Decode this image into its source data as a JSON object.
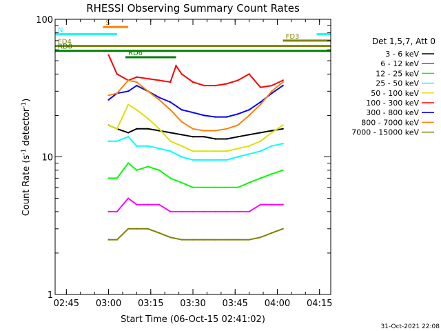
{
  "chart_data": {
    "type": "line",
    "title": "RHESSI Observing Summary Count Rates",
    "xlabel": "Start Time (06-Oct-15 02:41:02)",
    "ylabel": "Count Rate (s⁻¹ detector⁻¹)",
    "ylabel_main": "Count Rate (s",
    "ylabel_mid": " detector",
    "ylabel_end": ")",
    "ylabel_sup": "-1",
    "y_scale": "log",
    "ylim": [
      1,
      100
    ],
    "xlim": [
      "02:41",
      "04:19"
    ],
    "x_ticks": [
      "02:45",
      "03:00",
      "03:15",
      "03:30",
      "03:45",
      "04:00",
      "04:15"
    ],
    "y_ticks": [
      "1",
      "10",
      "100"
    ],
    "legend_title": "Det 1,5,7, Att 0",
    "legend_position": "right",
    "timestamp": "31-Oct-2021 22:08",
    "series": [
      {
        "name": "3 - 6 keV",
        "color": "#000000",
        "x": [
          "03:00",
          "03:03",
          "03:07",
          "03:10",
          "03:14",
          "03:18",
          "03:22",
          "03:26",
          "03:30",
          "03:34",
          "03:38",
          "03:42",
          "03:46",
          "03:50",
          "03:54",
          "03:58",
          "04:02"
        ],
        "y": [
          17,
          16,
          15,
          16,
          16,
          15.5,
          15,
          14.5,
          14,
          14,
          13.5,
          13.5,
          14,
          14.5,
          15,
          15.5,
          16
        ]
      },
      {
        "name": "6 - 12 keV",
        "color": "#ff00ff",
        "x": [
          "03:00",
          "03:03",
          "03:07",
          "03:10",
          "03:14",
          "03:18",
          "03:22",
          "03:26",
          "03:30",
          "03:34",
          "03:38",
          "03:42",
          "03:46",
          "03:50",
          "03:54",
          "03:58",
          "04:02"
        ],
        "y": [
          4,
          4,
          5,
          4.5,
          4.5,
          4.5,
          4,
          4,
          4,
          4,
          4,
          4,
          4,
          4,
          4.5,
          4.5,
          4.5
        ]
      },
      {
        "name": "12 - 25 keV",
        "color": "#00ff00",
        "x": [
          "03:00",
          "03:03",
          "03:07",
          "03:10",
          "03:14",
          "03:18",
          "03:22",
          "03:26",
          "03:30",
          "03:34",
          "03:38",
          "03:42",
          "03:46",
          "03:50",
          "03:54",
          "03:58",
          "04:02"
        ],
        "y": [
          7,
          7,
          9,
          8,
          8.5,
          8,
          7,
          6.5,
          6,
          6,
          6,
          6,
          6,
          6.5,
          7,
          7.5,
          8
        ]
      },
      {
        "name": "25 - 50 keV",
        "color": "#00ffff",
        "x": [
          "03:00",
          "03:03",
          "03:07",
          "03:10",
          "03:14",
          "03:18",
          "03:22",
          "03:26",
          "03:30",
          "03:34",
          "03:38",
          "03:42",
          "03:46",
          "03:50",
          "03:54",
          "03:58",
          "04:02"
        ],
        "y": [
          13,
          13,
          14,
          12,
          12,
          11.5,
          11,
          10,
          9.5,
          9.5,
          9.5,
          9.5,
          10,
          10.5,
          11,
          12,
          12.5
        ]
      },
      {
        "name": "50 - 100 keV",
        "color": "#e0e000",
        "x": [
          "03:00",
          "03:03",
          "03:07",
          "03:10",
          "03:14",
          "03:18",
          "03:22",
          "03:26",
          "03:30",
          "03:34",
          "03:38",
          "03:42",
          "03:46",
          "03:50",
          "03:54",
          "03:58",
          "04:02"
        ],
        "y": [
          17,
          16,
          24,
          22,
          19,
          16,
          13,
          12,
          11,
          11,
          11,
          11,
          11.5,
          12,
          13,
          15,
          17
        ]
      },
      {
        "name": "100 - 300 keV",
        "color": "#ff0000",
        "x": [
          "03:00",
          "03:03",
          "03:07",
          "03:10",
          "03:14",
          "03:18",
          "03:22",
          "03:24",
          "03:26",
          "03:30",
          "03:34",
          "03:38",
          "03:42",
          "03:46",
          "03:50",
          "03:54",
          "03:58",
          "04:02"
        ],
        "y": [
          55,
          40,
          36,
          38,
          37,
          36,
          35,
          46,
          40,
          35,
          33,
          33,
          34,
          36,
          40,
          32,
          33,
          36
        ]
      },
      {
        "name": "300 - 800 keV",
        "color": "#0000ff",
        "x": [
          "03:00",
          "03:03",
          "03:07",
          "03:10",
          "03:14",
          "03:18",
          "03:22",
          "03:26",
          "03:30",
          "03:34",
          "03:38",
          "03:42",
          "03:46",
          "03:50",
          "03:54",
          "03:58",
          "04:02"
        ],
        "y": [
          26,
          29,
          30,
          33,
          30,
          27,
          25,
          22,
          21,
          20,
          19.5,
          19.5,
          20.5,
          22,
          25,
          29,
          33
        ]
      },
      {
        "name": "800 - 7000 keV",
        "color": "#ff8000",
        "x": [
          "03:00",
          "03:03",
          "03:07",
          "03:10",
          "03:14",
          "03:18",
          "03:22",
          "03:26",
          "03:30",
          "03:34",
          "03:38",
          "03:42",
          "03:46",
          "03:50",
          "03:54",
          "03:58",
          "04:02"
        ],
        "y": [
          28,
          29,
          36,
          35,
          30,
          26,
          22,
          18,
          16,
          15.5,
          15.5,
          16,
          17,
          20,
          24,
          30,
          35
        ]
      },
      {
        "name": "7000 - 15000 keV",
        "color": "#808000",
        "x": [
          "03:00",
          "03:03",
          "03:07",
          "03:10",
          "03:14",
          "03:18",
          "03:22",
          "03:26",
          "03:30",
          "03:34",
          "03:38",
          "03:42",
          "03:46",
          "03:50",
          "03:54",
          "03:58",
          "04:02"
        ],
        "y": [
          2.5,
          2.5,
          3,
          3,
          3,
          2.8,
          2.6,
          2.5,
          2.5,
          2.5,
          2.5,
          2.5,
          2.5,
          2.5,
          2.6,
          2.8,
          3
        ]
      }
    ],
    "flag_bars": [
      {
        "label": "S",
        "color": "#ff8000",
        "start": "02:58",
        "end": "03:07",
        "y": 88
      },
      {
        "label": "N",
        "color": "#00ffff",
        "start": "02:41",
        "end": "03:03",
        "y": 78
      },
      {
        "label": "",
        "color": "#00ffff",
        "start": "04:14",
        "end": "04:19",
        "y": 78
      },
      {
        "label": "FD3",
        "color": "#808000",
        "start": "04:02",
        "end": "04:19",
        "y": 70
      },
      {
        "label": "FD4",
        "color": "#808000",
        "start": "02:41",
        "end": "04:19",
        "y": 64
      },
      {
        "label": "RD0",
        "color": "#008000",
        "start": "02:41",
        "end": "04:19",
        "y": 59
      },
      {
        "label": "RD6",
        "color": "#008000",
        "start": "03:06",
        "end": "03:24",
        "y": 53
      }
    ]
  }
}
